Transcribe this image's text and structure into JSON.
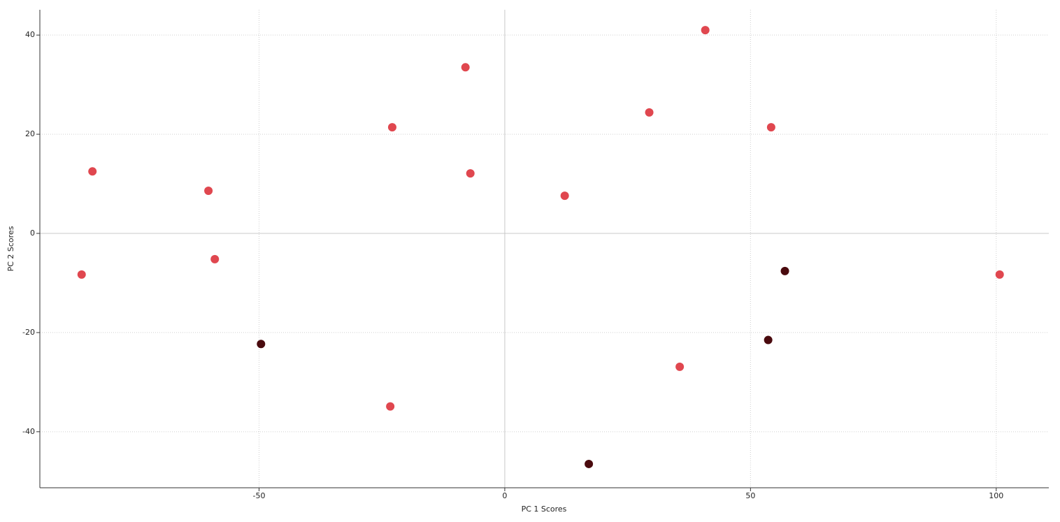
{
  "chart_data": {
    "type": "scatter",
    "x_label": "PC 1 Scores",
    "y_label": "PC 2 Scores",
    "xlim": [
      -94.6,
      110.7
    ],
    "ylim": [
      -51.3,
      45.1
    ],
    "xticks": [
      -50,
      0,
      50,
      100
    ],
    "yticks": [
      -40,
      -20,
      0,
      20,
      40
    ],
    "grid": true,
    "series": [
      {
        "color": "#e0474f",
        "x": [
          -83.9,
          -86.1,
          -60.3,
          -59.0,
          -22.9,
          -23.3,
          -8.0,
          -7.0,
          12.2,
          29.4,
          40.8,
          54.2,
          35.6,
          100.7
        ],
        "y": [
          12.5,
          -8.3,
          8.6,
          -5.2,
          21.4,
          -34.9,
          33.5,
          12.1,
          7.6,
          24.4,
          41.0,
          21.4,
          -26.9,
          -8.3
        ]
      },
      {
        "color": "#4a0a0e",
        "x": [
          -49.6,
          17.1,
          53.6,
          57.0
        ],
        "y": [
          -22.3,
          -46.5,
          -21.5,
          -7.6
        ]
      }
    ]
  }
}
